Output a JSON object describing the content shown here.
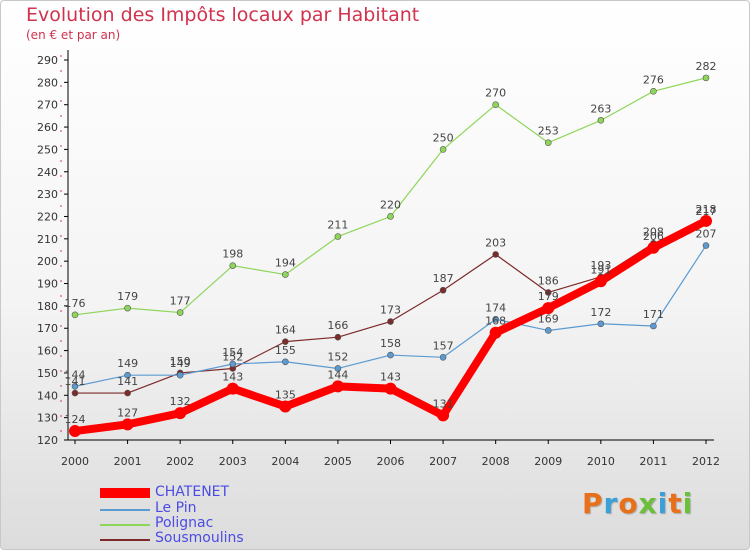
{
  "title": "Evolution des Impôts locaux par Habitant",
  "subtitle": "(en € et par an)",
  "colors": {
    "title": "#d1324e",
    "legend_text": "#4b4be6",
    "axis": "#000000",
    "grid": "#dddddd"
  },
  "chart_data": {
    "type": "line",
    "title": "Evolution des Impôts locaux par Habitant",
    "subtitle": "(en € et par an)",
    "xlabel": "",
    "ylabel": "",
    "categories": [
      "2000",
      "2001",
      "2002",
      "2003",
      "2004",
      "2005",
      "2006",
      "2007",
      "2008",
      "2009",
      "2010",
      "2011",
      "2012"
    ],
    "ylim": [
      120,
      290
    ],
    "ytick_step": 10,
    "grid": false,
    "legend_position": "bottom-left",
    "series": [
      {
        "name": "CHATENET",
        "color": "#ff0000",
        "values": [
          124,
          127,
          132,
          143,
          135,
          144,
          143,
          131,
          168,
          179,
          191,
          206,
          218
        ],
        "labels": [
          "124",
          "127",
          "132",
          "143",
          "135",
          "144",
          "143",
          "131",
          "168",
          "179",
          "191",
          "206",
          "218"
        ]
      },
      {
        "name": "Le Pin",
        "color": "#5c9bd1",
        "values": [
          144,
          149,
          149,
          154,
          155,
          152,
          158,
          157,
          174,
          169,
          172,
          171,
          207
        ],
        "labels": [
          "144",
          "149",
          "149",
          "154",
          "155",
          "152",
          "158",
          "157",
          "174",
          "169",
          "172",
          "171",
          "207"
        ]
      },
      {
        "name": "Polignac",
        "color": "#8ed65a",
        "values": [
          176,
          179,
          177,
          198,
          194,
          211,
          220,
          250,
          270,
          253,
          263,
          276,
          282
        ],
        "labels": [
          "176",
          "179",
          "177",
          "198",
          "194",
          "211",
          "220",
          "250",
          "270",
          "253",
          "263",
          "276",
          "282"
        ]
      },
      {
        "name": "Sousmoulins",
        "color": "#7d2a2a",
        "values": [
          141,
          141,
          150,
          152,
          164,
          166,
          173,
          187,
          203,
          186,
          193,
          208,
          217
        ],
        "labels": [
          "141",
          "141",
          "150",
          "152",
          "164",
          "166",
          "173",
          "187",
          "203",
          "186",
          "193",
          "208",
          "217"
        ]
      }
    ]
  },
  "logo": {
    "letters": [
      {
        "ch": "P",
        "color": "#e8701a"
      },
      {
        "ch": "r",
        "color": "#3aa0d8"
      },
      {
        "ch": "o",
        "color": "#e8701a"
      },
      {
        "ch": "x",
        "color": "#6cbf3a"
      },
      {
        "ch": "i",
        "color": "#3aa0d8"
      },
      {
        "ch": "t",
        "color": "#e8701a"
      },
      {
        "ch": "i",
        "color": "#6cbf3a"
      }
    ]
  }
}
